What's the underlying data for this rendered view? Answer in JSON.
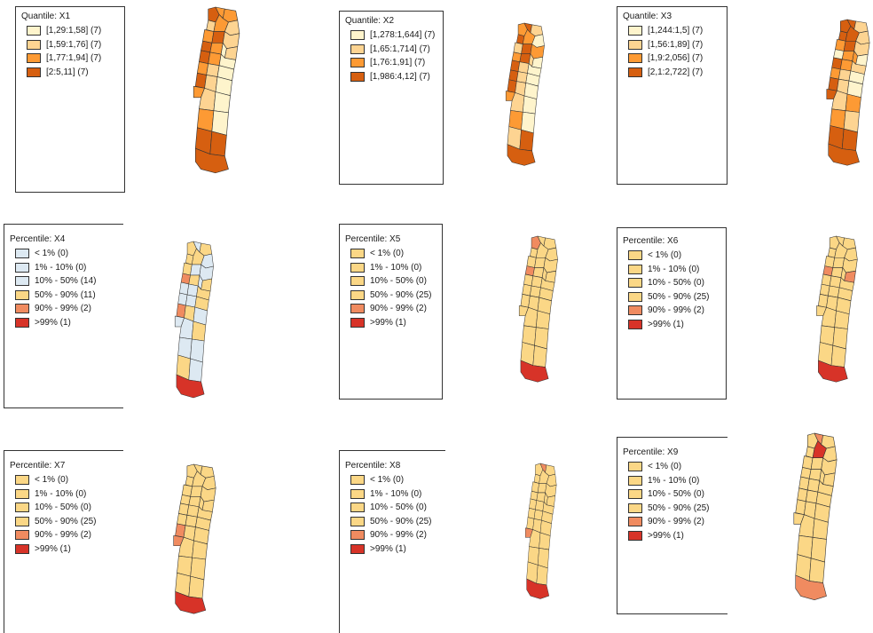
{
  "colors": {
    "q1": "#fef4cc",
    "q2": "#fdd492",
    "q3": "#fd9a34",
    "q4": "#d65f10",
    "p_low": "#dde9f2",
    "p_mid": "#fbd786",
    "p_high": "#f08b60",
    "p_top": "#d73328",
    "outline": "#333333"
  },
  "panels": [
    {
      "id": "x1",
      "title": "Quantile: X1",
      "legend": [
        {
          "label": "[1,29:1,58] (7)",
          "color": "#fef4cc"
        },
        {
          "label": "[1,59:1,76] (7)",
          "color": "#fdd492"
        },
        {
          "label": "[1,77:1,94] (7)",
          "color": "#fd9a34"
        },
        {
          "label": "[2:5,11] (7)",
          "color": "#d65f10"
        }
      ],
      "map": {
        "kind": "quantile",
        "scheme": 1,
        "hi": [],
        "south": "q4"
      }
    },
    {
      "id": "x2",
      "title": "Quantile: X2",
      "legend": [
        {
          "label": "[1,278:1,644] (7)",
          "color": "#fef4cc"
        },
        {
          "label": "[1,65:1,714] (7)",
          "color": "#fdd492"
        },
        {
          "label": "[1,76:1,91] (7)",
          "color": "#fd9a34"
        },
        {
          "label": "[1,986:4,12] (7)",
          "color": "#d65f10"
        }
      ],
      "map": {
        "kind": "quantile",
        "scheme": 2,
        "hi": [],
        "south": "q4"
      }
    },
    {
      "id": "x3",
      "title": "Quantile: X3",
      "legend": [
        {
          "label": "[1,244:1,5] (7)",
          "color": "#fef4cc"
        },
        {
          "label": "[1,56:1,89] (7)",
          "color": "#fdd492"
        },
        {
          "label": "[1,9:2,056] (7)",
          "color": "#fd9a34"
        },
        {
          "label": "[2,1:2,722] (7)",
          "color": "#d65f10"
        }
      ],
      "map": {
        "kind": "quantile",
        "scheme": 3,
        "hi": [],
        "south": "q4"
      }
    },
    {
      "id": "x4",
      "title": "Percentile: X4",
      "legend": [
        {
          "label": "< 1% (0)",
          "color": "#dde9f2"
        },
        {
          "label": "1% - 10% (0)",
          "color": "#dde9f2"
        },
        {
          "label": "10% - 50% (14)",
          "color": "#dde9f2"
        },
        {
          "label": "50% - 90% (11)",
          "color": "#fbd786"
        },
        {
          "label": "90% - 99% (2)",
          "color": "#f08b60"
        },
        {
          "label": ">99% (1)",
          "color": "#d73328"
        }
      ],
      "map": {
        "kind": "percentile4",
        "hi": [
          8,
          19
        ],
        "south": "p_top"
      }
    },
    {
      "id": "x5",
      "title": "Percentile: X5",
      "legend": [
        {
          "label": "< 1% (0)",
          "color": "#fbd786"
        },
        {
          "label": "1% - 10% (0)",
          "color": "#fbd786"
        },
        {
          "label": "10% - 50% (0)",
          "color": "#fbd786"
        },
        {
          "label": "50% - 90% (25)",
          "color": "#fbd786"
        },
        {
          "label": "90% - 99% (2)",
          "color": "#f08b60"
        },
        {
          "label": ">99% (1)",
          "color": "#d73328"
        }
      ],
      "map": {
        "kind": "percentile",
        "hi": [
          0,
          8
        ],
        "south": "p_top"
      }
    },
    {
      "id": "x6",
      "title": "Percentile: X6",
      "legend": [
        {
          "label": "< 1% (0)",
          "color": "#fbd786"
        },
        {
          "label": "1% - 10% (0)",
          "color": "#fbd786"
        },
        {
          "label": "10% - 50% (0)",
          "color": "#fbd786"
        },
        {
          "label": "50% - 90% (25)",
          "color": "#fbd786"
        },
        {
          "label": "90% - 99% (2)",
          "color": "#f08b60"
        },
        {
          "label": ">99% (1)",
          "color": "#d73328"
        }
      ],
      "map": {
        "kind": "percentile",
        "hi": [
          8,
          12
        ],
        "south": "p_top"
      }
    },
    {
      "id": "x7",
      "title": "Percentile: X7",
      "legend": [
        {
          "label": "< 1% (0)",
          "color": "#fbd786"
        },
        {
          "label": "1% - 10% (0)",
          "color": "#fbd786"
        },
        {
          "label": "10% - 50% (0)",
          "color": "#fbd786"
        },
        {
          "label": "50% - 90% (25)",
          "color": "#fbd786"
        },
        {
          "label": "90% - 99% (2)",
          "color": "#f08b60"
        },
        {
          "label": ">99% (1)",
          "color": "#d73328"
        }
      ],
      "map": {
        "kind": "percentile",
        "hi": [
          19,
          20
        ],
        "south": "p_top"
      }
    },
    {
      "id": "x8",
      "title": "Percentile: X8",
      "legend": [
        {
          "label": "< 1% (0)",
          "color": "#fbd786"
        },
        {
          "label": "1% - 10% (0)",
          "color": "#fbd786"
        },
        {
          "label": "10% - 50% (0)",
          "color": "#fbd786"
        },
        {
          "label": "50% - 90% (25)",
          "color": "#fbd786"
        },
        {
          "label": "90% - 99% (2)",
          "color": "#f08b60"
        },
        {
          "label": ">99% (1)",
          "color": "#d73328"
        }
      ],
      "map": {
        "kind": "percentile",
        "hi": [
          1,
          20
        ],
        "south": "p_top"
      }
    },
    {
      "id": "x9",
      "title": "Percentile: X9",
      "legend": [
        {
          "label": "< 1% (0)",
          "color": "#fbd786"
        },
        {
          "label": "1% - 10% (0)",
          "color": "#fbd786"
        },
        {
          "label": "10% - 50% (0)",
          "color": "#fbd786"
        },
        {
          "label": "50% - 90% (25)",
          "color": "#fbd786"
        },
        {
          "label": "90% - 99% (2)",
          "color": "#f08b60"
        },
        {
          "label": ">99% (1)",
          "color": "#d73328"
        }
      ],
      "map": {
        "kind": "percentile",
        "hi": [
          1
        ],
        "top": [
          4
        ],
        "south": "p_high"
      }
    }
  ]
}
